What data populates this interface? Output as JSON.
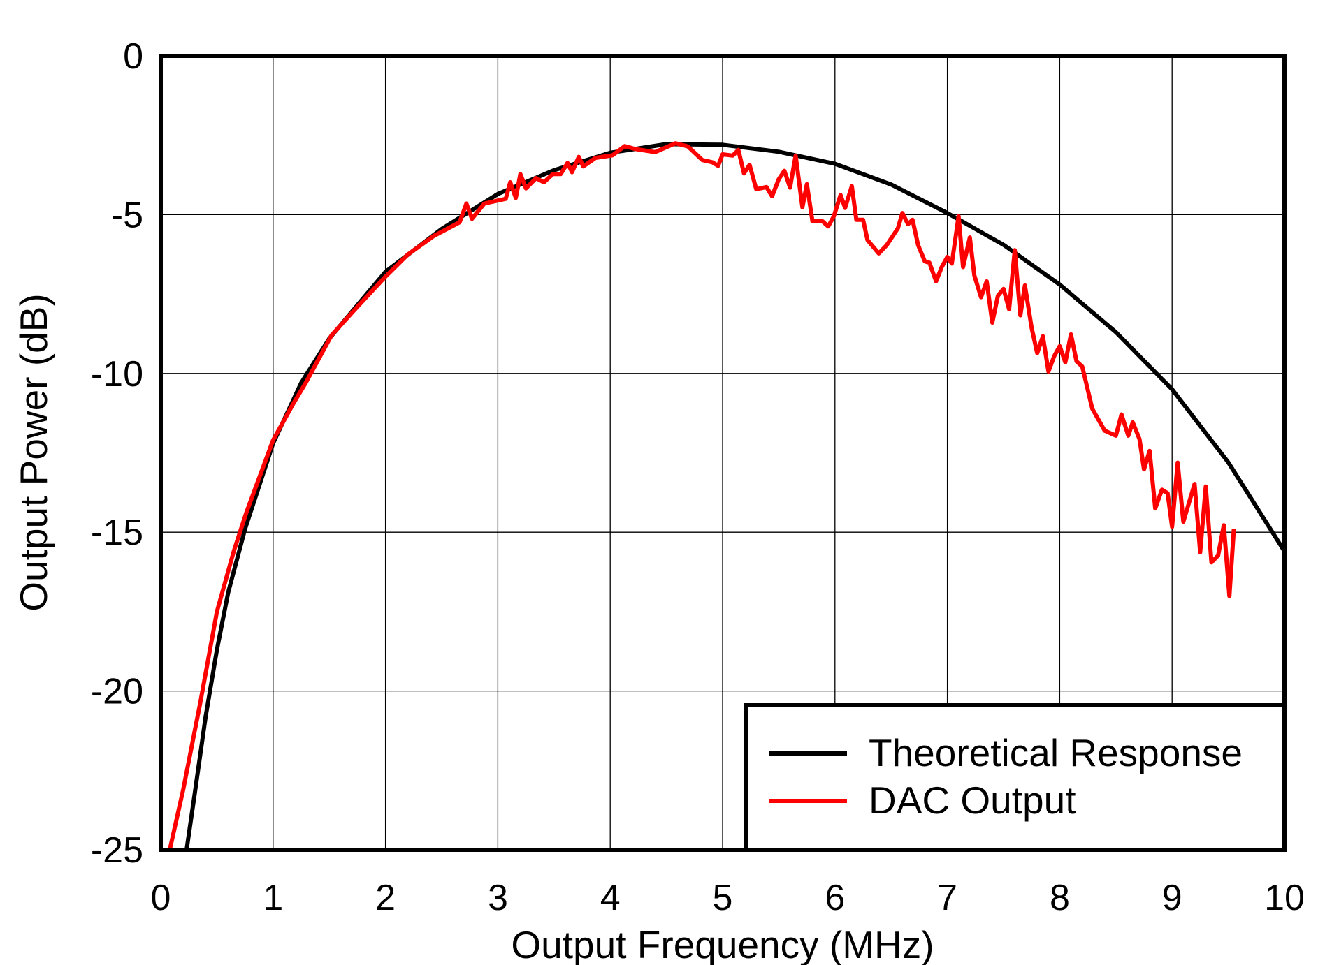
{
  "chart_data": {
    "type": "line",
    "title": "",
    "xlabel": "Output Frequency (MHz)",
    "ylabel": "Output Power (dB)",
    "xlim": [
      0,
      10
    ],
    "ylim": [
      -25,
      0
    ],
    "xticks": [
      "0",
      "1",
      "2",
      "3",
      "4",
      "5",
      "6",
      "7",
      "8",
      "9",
      "10"
    ],
    "yticks": [
      "0",
      "-5",
      "-10",
      "-15",
      "-20",
      "-25"
    ],
    "grid": true,
    "legend_position": "bottom-right",
    "series": [
      {
        "name": "Theoretical Response",
        "color": "#000000",
        "x": [
          0.23,
          0.3,
          0.4,
          0.5,
          0.6,
          0.75,
          1.0,
          1.25,
          1.5,
          2.0,
          2.5,
          3.0,
          3.5,
          4.0,
          4.5,
          5.0,
          5.5,
          6.0,
          6.5,
          7.0,
          7.5,
          8.0,
          8.5,
          9.0,
          9.5,
          10.0
        ],
        "y": [
          -25,
          -23.3,
          -20.8,
          -18.7,
          -16.9,
          -14.9,
          -12.2,
          -10.3,
          -8.9,
          -6.8,
          -5.45,
          -4.35,
          -3.6,
          -3.05,
          -2.78,
          -2.8,
          -3.02,
          -3.4,
          -4.05,
          -4.95,
          -5.95,
          -7.2,
          -8.7,
          -10.5,
          -12.8,
          -15.6
        ]
      },
      {
        "name": "DAC Output",
        "color": "#ff0000",
        "x": [
          0.08,
          0.2,
          0.35,
          0.5,
          0.65,
          0.76,
          1.0,
          1.18,
          1.29,
          1.52,
          1.75,
          2.0,
          2.2,
          2.43,
          2.66,
          2.72,
          2.77,
          2.88,
          3.07,
          3.11,
          3.16,
          3.2,
          3.25,
          3.34,
          3.41,
          3.49,
          3.56,
          3.62,
          3.66,
          3.72,
          3.76,
          3.87,
          4.02,
          4.13,
          4.22,
          4.4,
          4.58,
          4.69,
          4.82,
          4.91,
          4.96,
          5.0,
          5.09,
          5.14,
          5.19,
          5.24,
          5.3,
          5.39,
          5.44,
          5.5,
          5.55,
          5.6,
          5.65,
          5.71,
          5.75,
          5.8,
          5.89,
          5.94,
          5.99,
          6.05,
          6.09,
          6.15,
          6.19,
          6.25,
          6.29,
          6.39,
          6.46,
          6.56,
          6.6,
          6.65,
          6.69,
          6.74,
          6.8,
          6.84,
          6.9,
          6.95,
          7.0,
          7.04,
          7.1,
          7.14,
          7.2,
          7.24,
          7.3,
          7.35,
          7.4,
          7.45,
          7.5,
          7.55,
          7.6,
          7.65,
          7.69,
          7.75,
          7.8,
          7.85,
          7.9,
          7.95,
          8.0,
          8.05,
          8.1,
          8.15,
          8.2,
          8.29,
          8.4,
          8.5,
          8.55,
          8.61,
          8.65,
          8.71,
          8.75,
          8.8,
          8.85,
          8.91,
          8.96,
          9.0,
          9.05,
          9.1,
          9.2,
          9.25,
          9.3,
          9.35,
          9.41,
          9.46,
          9.51,
          9.55
        ],
        "y": [
          -25,
          -23.1,
          -20.4,
          -17.5,
          -15.6,
          -14.4,
          -12.1,
          -10.95,
          -10.3,
          -8.8,
          -7.9,
          -6.95,
          -6.25,
          -5.67,
          -5.24,
          -4.65,
          -5.13,
          -4.65,
          -4.5,
          -3.98,
          -4.47,
          -3.72,
          -4.17,
          -3.85,
          -3.98,
          -3.72,
          -3.72,
          -3.37,
          -3.66,
          -3.18,
          -3.48,
          -3.21,
          -3.13,
          -2.84,
          -2.93,
          -3.03,
          -2.75,
          -2.85,
          -3.28,
          -3.35,
          -3.46,
          -3.1,
          -3.14,
          -2.96,
          -3.7,
          -3.43,
          -4.2,
          -4.13,
          -4.42,
          -3.88,
          -3.62,
          -4.15,
          -3.14,
          -4.77,
          -4.04,
          -5.21,
          -5.21,
          -5.37,
          -5.05,
          -4.38,
          -4.79,
          -4.1,
          -5.16,
          -5.16,
          -5.8,
          -6.22,
          -5.96,
          -5.43,
          -4.95,
          -5.3,
          -5.16,
          -5.96,
          -6.47,
          -6.51,
          -7.1,
          -6.65,
          -6.33,
          -6.54,
          -5.05,
          -6.65,
          -5.72,
          -6.91,
          -7.6,
          -7.1,
          -8.4,
          -7.55,
          -7.34,
          -7.98,
          -6.12,
          -8.17,
          -7.23,
          -8.56,
          -9.36,
          -8.83,
          -9.94,
          -9.46,
          -9.14,
          -9.65,
          -8.77,
          -9.62,
          -9.78,
          -11.11,
          -11.8,
          -11.96,
          -11.29,
          -11.96,
          -11.54,
          -12.07,
          -13.02,
          -12.44,
          -14.25,
          -13.66,
          -13.77,
          -14.83,
          -12.81,
          -14.67,
          -13.48,
          -15.63,
          -13.56,
          -15.95,
          -15.73,
          -14.78,
          -17.01,
          -14.9
        ]
      }
    ]
  }
}
